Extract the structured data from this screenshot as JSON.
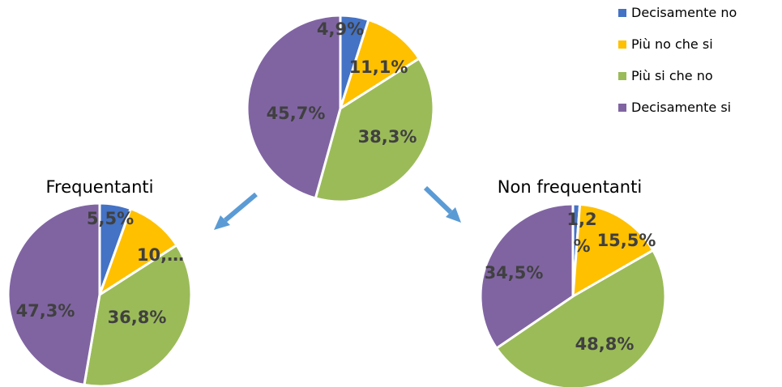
{
  "chart_data": [
    {
      "type": "pie",
      "title": "",
      "categories": [
        "Decisamente no",
        "Più no che si",
        "Più si che no",
        "Decisamente si"
      ],
      "values": [
        4.9,
        11.1,
        38.3,
        45.7
      ],
      "labels": [
        "4,9%",
        "11,1%",
        "38,3%",
        "45,7%"
      ],
      "legend": "top-right"
    },
    {
      "type": "pie",
      "title": "Frequentanti",
      "categories": [
        "Decisamente no",
        "Più no che si",
        "Più si che no",
        "Decisamente si"
      ],
      "values": [
        5.5,
        10.4,
        36.8,
        47.3
      ],
      "labels": [
        "5,5%",
        "10,…",
        "36,8%",
        "47,3%"
      ]
    },
    {
      "type": "pie",
      "title": "Non frequentanti",
      "categories": [
        "Decisamente no",
        "Più no che si",
        "Più si che no",
        "Decisamente si"
      ],
      "values": [
        1.2,
        15.5,
        48.8,
        34.5
      ],
      "labels": [
        "1,2 %",
        "15,5%",
        "48,8%",
        "34,5%"
      ]
    }
  ],
  "legend": {
    "items": [
      "Decisamente no",
      "Più no che si",
      "Più si che no",
      "Decisamente si"
    ]
  },
  "colors": [
    "#4472C4",
    "#FFC000",
    "#9BBB59",
    "#8064A2"
  ],
  "arrow_color": "#5B9BD5"
}
